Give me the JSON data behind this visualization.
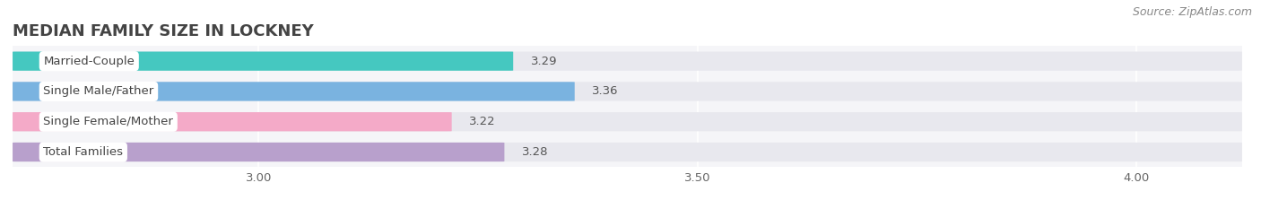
{
  "title": "MEDIAN FAMILY SIZE IN LOCKNEY",
  "source": "Source: ZipAtlas.com",
  "categories": [
    "Married-Couple",
    "Single Male/Father",
    "Single Female/Mother",
    "Total Families"
  ],
  "values": [
    3.29,
    3.36,
    3.22,
    3.28
  ],
  "bar_colors": [
    "#45c8c0",
    "#7ab3e0",
    "#f4aac8",
    "#b8a0cc"
  ],
  "xlim_left": 2.72,
  "xlim_right": 4.12,
  "xmin": 2.72,
  "xticks": [
    3.0,
    3.5,
    4.0
  ],
  "background_color": "#ffffff",
  "chart_bg_color": "#f5f5f8",
  "bar_bg_color": "#e8e8ee",
  "bar_height": 0.62,
  "bar_gap": 0.38,
  "title_fontsize": 13,
  "source_fontsize": 9,
  "label_fontsize": 9.5,
  "value_fontsize": 9.5,
  "tick_fontsize": 9.5
}
